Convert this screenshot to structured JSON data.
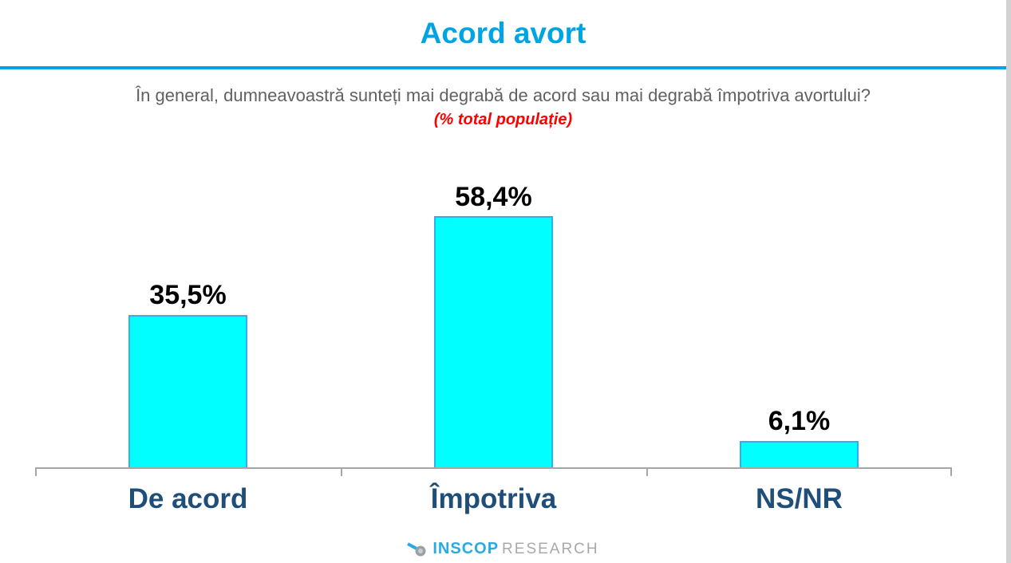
{
  "page": {
    "title": "Acord avort"
  },
  "subtitle": {
    "question": "În general, dumneavoastră sunteți mai degrabă de acord sau mai degrabă împotriva avortului?",
    "note": "(% total populație)"
  },
  "chart_data": {
    "type": "bar",
    "title": "Acord avort",
    "categories": [
      "De acord",
      "Împotriva",
      "NS/NR"
    ],
    "values": [
      35.5,
      58.4,
      6.1
    ],
    "value_labels": [
      "35,5%",
      "58,4%",
      "6,1%"
    ],
    "xlabel": "",
    "ylabel": "",
    "ylim": [
      0,
      70
    ],
    "grid": false,
    "legend": false,
    "bar_color": "#00FFFF",
    "bar_border_color": "#2FB0E8",
    "axis_color": "#A6A6A6"
  },
  "footer": {
    "logo_primary": "INSCOP",
    "logo_secondary": "RESEARCH"
  },
  "colors": {
    "accent": "#00A4E4",
    "bar_fill": "#00FFFF",
    "bar_border": "#2FB0E8",
    "category": "#1F4E79",
    "subtitle": "#616161",
    "note": "#FF0000",
    "axis": "#A6A6A6",
    "value_label": "#000000",
    "logo_text": "#29ABE2",
    "logo_secondary": "#A9A9A9",
    "edge_strip": "#D2D2D2"
  }
}
